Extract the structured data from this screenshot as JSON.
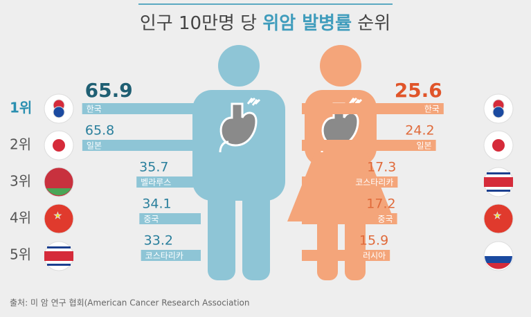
{
  "chart_data": {
    "type": "pictogram-bar",
    "title": {
      "prefix": "인구 10만명 당",
      "highlight": "위암 발병률",
      "suffix": "순위"
    },
    "ranks": [
      "1위",
      "2위",
      "3위",
      "4위",
      "5위"
    ],
    "series": [
      {
        "color": "#8ec5d6",
        "categories": [
          "한국",
          "일본",
          "벨라루스",
          "중국",
          "코스타리카"
        ],
        "values": [
          65.9,
          65.8,
          35.7,
          34.1,
          33.2
        ]
      },
      {
        "color": "#f4a57a",
        "categories": [
          "한국",
          "일본",
          "코스타리카",
          "중국",
          "러시아"
        ],
        "values": [
          25.6,
          24.2,
          17.3,
          17.2,
          15.9
        ]
      }
    ],
    "source": "출처: 미 암 연구 협회(American Cancer Research Association"
  }
}
